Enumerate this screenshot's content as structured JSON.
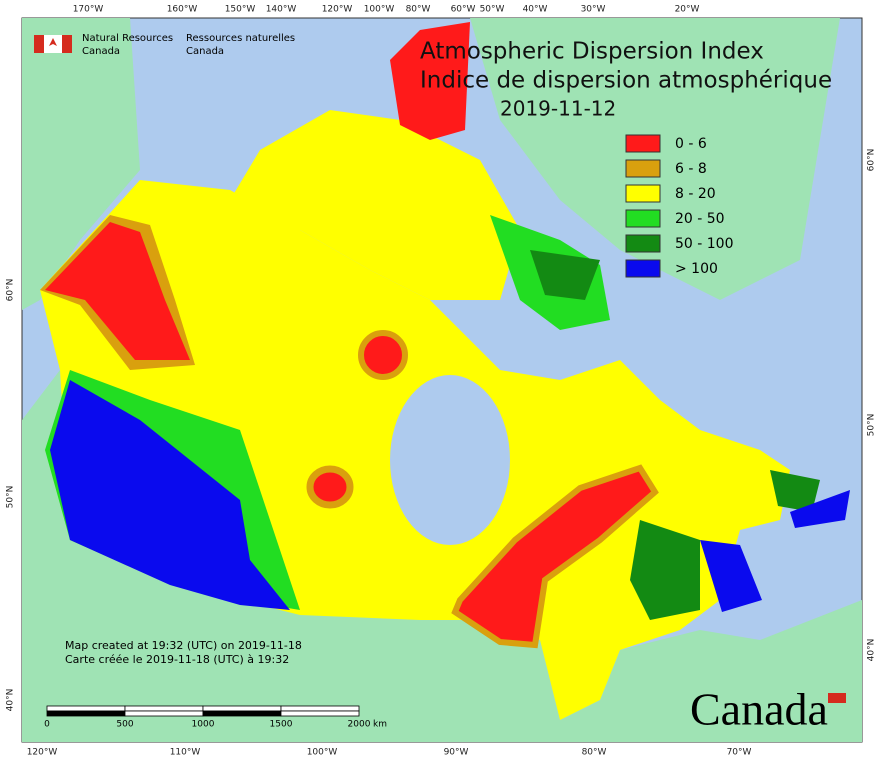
{
  "header": {
    "agency_en_line1": "Natural Resources",
    "agency_en_line2": "Canada",
    "agency_fr_line1": "Ressources naturelles",
    "agency_fr_line2": "Canada"
  },
  "title": {
    "line1": "Atmospheric Dispersion Index",
    "line2": "Indice de dispersion atmosphérique",
    "date": "2019-11-12"
  },
  "legend": [
    {
      "label": "0 - 6",
      "color": "#ff1a1a"
    },
    {
      "label": "6 - 8",
      "color": "#d9a00e"
    },
    {
      "label": "8 - 20",
      "color": "#ffff00"
    },
    {
      "label": "20 - 50",
      "color": "#22dd22"
    },
    {
      "label": "50 - 100",
      "color": "#138a13"
    },
    {
      "label": "> 100",
      "color": "#0a0aee"
    }
  ],
  "graticule": {
    "top": [
      "170°W",
      "160°W",
      "150°W",
      "140°W",
      "120°W",
      "100°W",
      "80°W",
      "60°W",
      "50°W",
      "40°W",
      "30°W",
      "20°W"
    ],
    "bottom": [
      "120°W",
      "110°W",
      "100°W",
      "90°W",
      "80°W",
      "70°W"
    ],
    "left": [
      "60°N",
      "50°N",
      "40°N"
    ],
    "right": [
      "60°N",
      "50°N",
      "40°N"
    ]
  },
  "footer": {
    "created_en": "Map created at 19:32 (UTC) on 2019-11-18",
    "created_fr": "Carte créée le 2019-11-18 (UTC) à 19:32"
  },
  "scale_bar": {
    "labels": [
      "0",
      "500",
      "1000",
      "1500",
      "2000"
    ],
    "unit": "km"
  },
  "wordmark": "Canada"
}
